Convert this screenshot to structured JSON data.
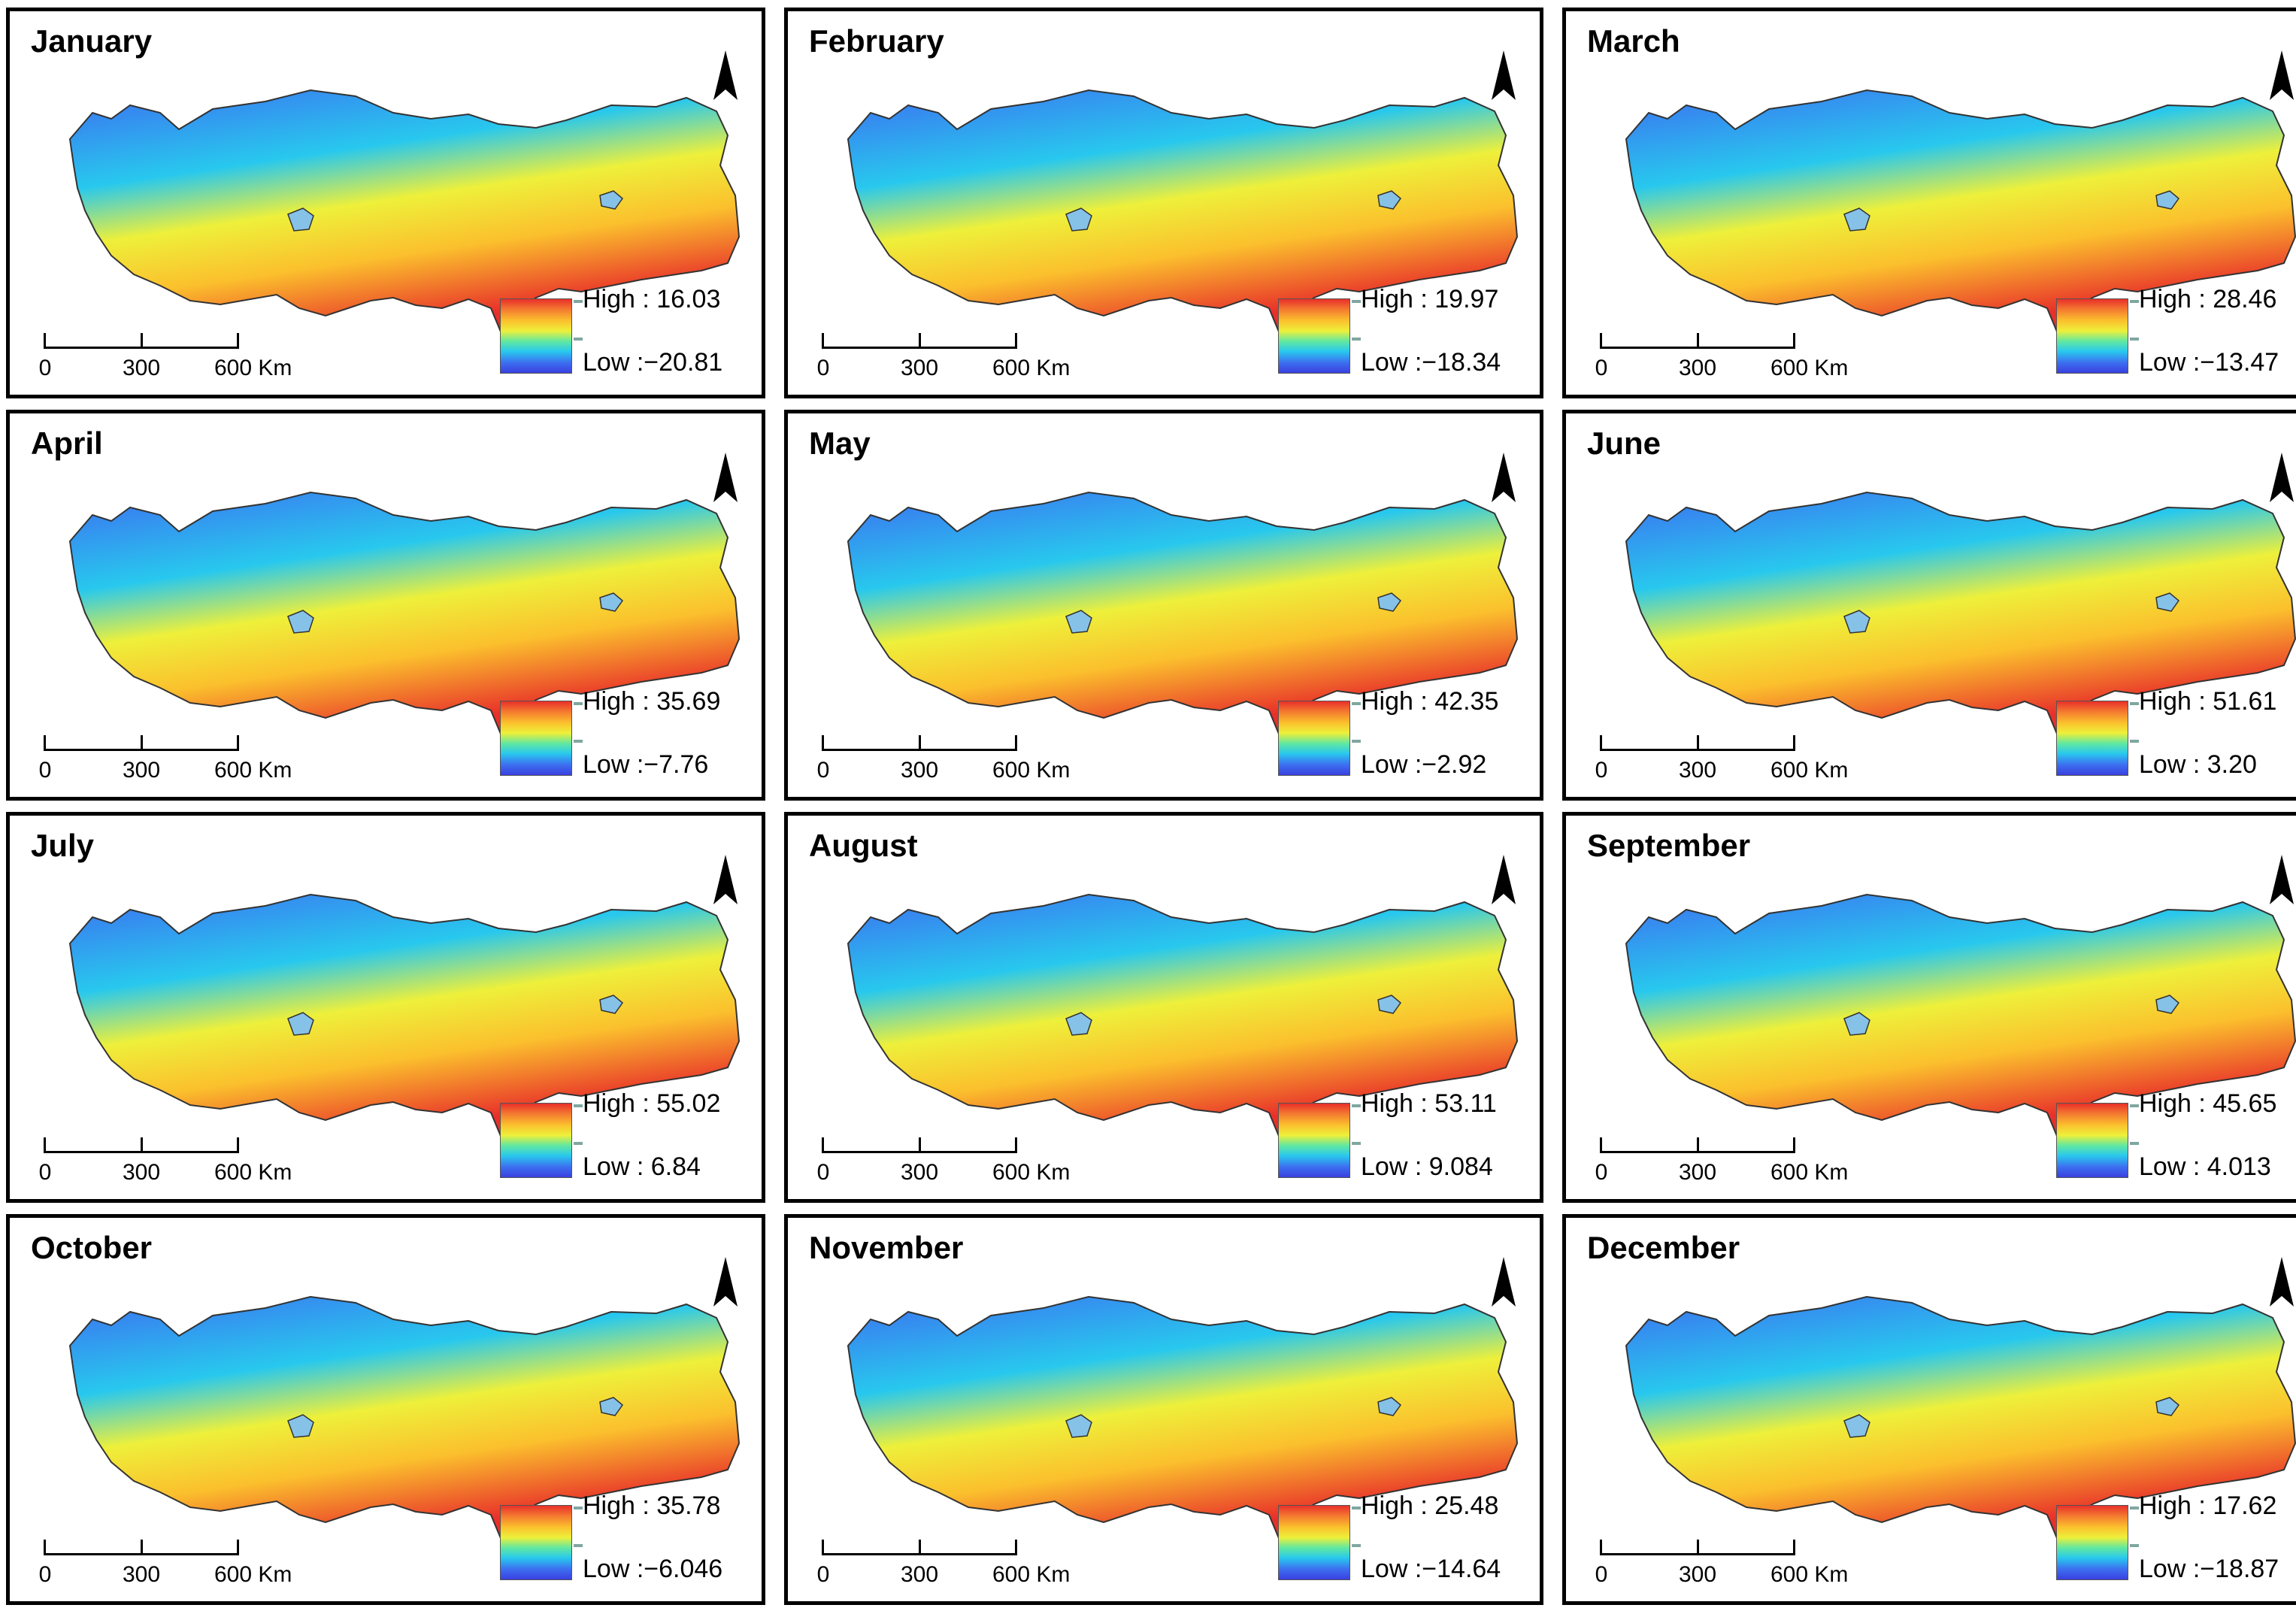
{
  "figure": {
    "north_label": "N",
    "scale_labels": [
      "0",
      "300",
      "600 Km"
    ],
    "high_prefix": "High : ",
    "low_prefix": "Low :",
    "legend_colors": [
      "#e8302a",
      "#f47a30",
      "#fbc02d",
      "#eef03a",
      "#62e8a0",
      "#28c8ee",
      "#3c6ff0",
      "#3a40e0"
    ],
    "panels": [
      {
        "title": "January",
        "high": "16.03",
        "low": "−20.81"
      },
      {
        "title": "February",
        "high": "19.97",
        "low": "−18.34"
      },
      {
        "title": "March",
        "high": "28.46",
        "low": "−13.47"
      },
      {
        "title": "April",
        "high": "35.69",
        "low": "−7.76"
      },
      {
        "title": "May",
        "high": "42.35",
        "low": "−2.92"
      },
      {
        "title": "June",
        "high": "51.61",
        "low": " 3.20"
      },
      {
        "title": "July",
        "high": "55.02",
        "low": " 6.84"
      },
      {
        "title": "August",
        "high": "53.11",
        "low": " 9.084"
      },
      {
        "title": "September",
        "high": "45.65",
        "low": " 4.013"
      },
      {
        "title": "October",
        "high": "35.78",
        "low": "−6.046"
      },
      {
        "title": "November",
        "high": "25.48",
        "low": "−14.64"
      },
      {
        "title": "December",
        "high": "17.62",
        "low": "−18.87"
      }
    ]
  }
}
